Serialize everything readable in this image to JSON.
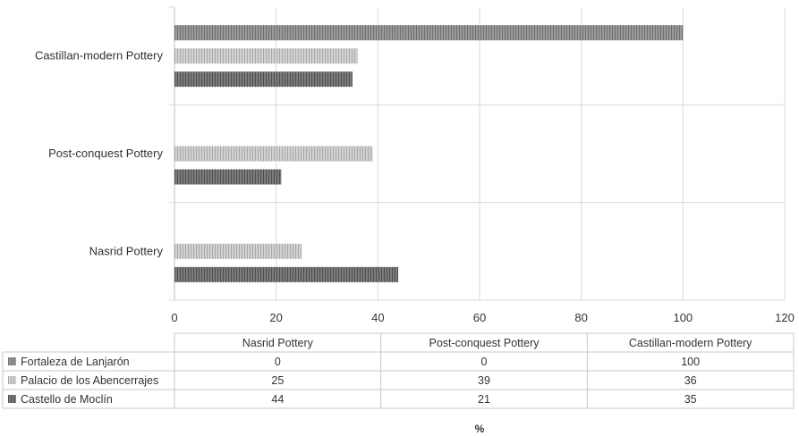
{
  "chart_data": {
    "type": "bar",
    "orientation": "horizontal",
    "categories": [
      "Nasrid Pottery",
      "Post-conquest Pottery",
      "Castillan-modern Pottery"
    ],
    "series": [
      {
        "name": "Fortaleza de Lanjarón",
        "values": [
          0,
          0,
          100
        ],
        "color": "#8c8c8c"
      },
      {
        "name": "Palacio de los Abencerrajes",
        "values": [
          25,
          39,
          36
        ],
        "color": "#c4c4c4"
      },
      {
        "name": "Castello de Moclín",
        "values": [
          44,
          21,
          35
        ],
        "color": "#6e6e6e"
      }
    ],
    "xlim": [
      0,
      120
    ],
    "xticks": [
      0,
      20,
      40,
      60,
      80,
      100,
      120
    ],
    "xlabel": "%",
    "ylabel": "",
    "title": "",
    "grid": true,
    "legend": "data-table-below"
  }
}
